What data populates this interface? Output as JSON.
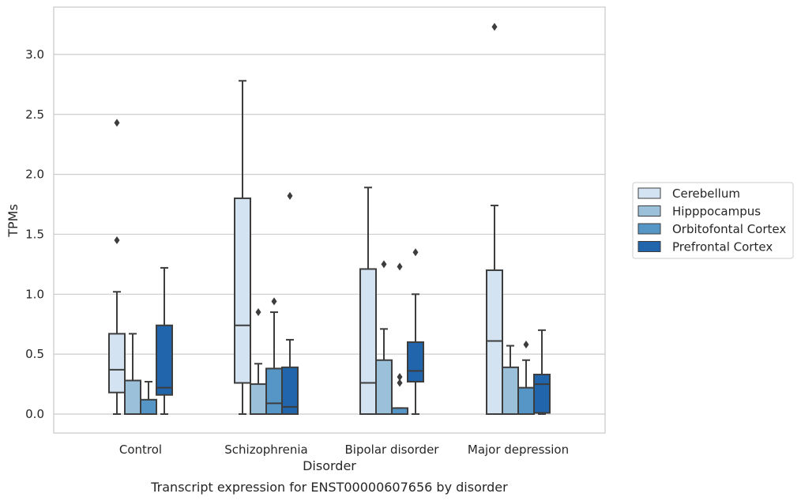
{
  "colors": {
    "background": "#ffffff",
    "grid": "#cccccc",
    "frame": "#cccccc",
    "box_edge": "#3d3d3d",
    "text": "#262626"
  },
  "caption": "Transcript expression for ENST00000607656 by disorder",
  "chart_data": {
    "type": "box",
    "title": "",
    "xlabel": "Disorder",
    "ylabel": "TPMs",
    "ylim": [
      -0.16,
      3.4
    ],
    "yticks": [
      "0.0",
      "0.5",
      "1.0",
      "1.5",
      "2.0",
      "2.5",
      "3.0"
    ],
    "grid": true,
    "legend_position": "right",
    "categories": [
      "Control",
      "Schizophrenia",
      "Bipolar disorder",
      "Major depression"
    ],
    "series": [
      {
        "name": "Cerebellum",
        "color": "#d4e3f2",
        "boxes": [
          {
            "whisker_low": 0.0,
            "q1": 0.18,
            "median": 0.37,
            "q3": 0.67,
            "whisker_high": 1.02,
            "outliers": [
              1.45,
              2.43
            ]
          },
          {
            "whisker_low": 0.0,
            "q1": 0.26,
            "median": 0.74,
            "q3": 1.8,
            "whisker_high": 2.78,
            "outliers": []
          },
          {
            "whisker_low": 0.0,
            "q1": 0.0,
            "median": 0.26,
            "q3": 1.21,
            "whisker_high": 1.89,
            "outliers": []
          },
          {
            "whisker_low": 0.0,
            "q1": 0.0,
            "median": 0.61,
            "q3": 1.2,
            "whisker_high": 1.74,
            "outliers": [
              3.23
            ]
          }
        ]
      },
      {
        "name": "Hipppocampus",
        "color": "#9ac0da",
        "boxes": [
          {
            "whisker_low": 0.0,
            "q1": 0.0,
            "median": 0.0,
            "q3": 0.28,
            "whisker_high": 0.67,
            "outliers": []
          },
          {
            "whisker_low": 0.0,
            "q1": 0.0,
            "median": 0.0,
            "q3": 0.25,
            "whisker_high": 0.42,
            "outliers": [
              0.85
            ]
          },
          {
            "whisker_low": 0.0,
            "q1": 0.0,
            "median": 0.0,
            "q3": 0.45,
            "whisker_high": 0.71,
            "outliers": [
              1.25
            ]
          },
          {
            "whisker_low": 0.0,
            "q1": 0.0,
            "median": 0.0,
            "q3": 0.39,
            "whisker_high": 0.57,
            "outliers": []
          }
        ]
      },
      {
        "name": "Orbitofontal Cortex",
        "color": "#5696c6",
        "boxes": [
          {
            "whisker_low": 0.0,
            "q1": 0.0,
            "median": 0.0,
            "q3": 0.12,
            "whisker_high": 0.27,
            "outliers": []
          },
          {
            "whisker_low": 0.0,
            "q1": 0.0,
            "median": 0.09,
            "q3": 0.38,
            "whisker_high": 0.85,
            "outliers": [
              0.94
            ]
          },
          {
            "whisker_low": 0.0,
            "q1": 0.0,
            "median": 0.0,
            "q3": 0.05,
            "whisker_high": 0.05,
            "outliers": [
              0.26,
              0.31,
              1.23
            ]
          },
          {
            "whisker_low": 0.0,
            "q1": 0.0,
            "median": 0.0,
            "q3": 0.22,
            "whisker_high": 0.45,
            "outliers": [
              0.58
            ]
          }
        ]
      },
      {
        "name": "Prefrontal Cortex",
        "color": "#2166ac",
        "boxes": [
          {
            "whisker_low": 0.0,
            "q1": 0.16,
            "median": 0.22,
            "q3": 0.74,
            "whisker_high": 1.22,
            "outliers": []
          },
          {
            "whisker_low": 0.0,
            "q1": 0.0,
            "median": 0.06,
            "q3": 0.39,
            "whisker_high": 0.62,
            "outliers": [
              1.82
            ]
          },
          {
            "whisker_low": 0.0,
            "q1": 0.27,
            "median": 0.36,
            "q3": 0.6,
            "whisker_high": 1.0,
            "outliers": [
              1.35
            ]
          },
          {
            "whisker_low": 0.0,
            "q1": 0.01,
            "median": 0.25,
            "q3": 0.33,
            "whisker_high": 0.7,
            "outliers": []
          }
        ]
      }
    ]
  }
}
